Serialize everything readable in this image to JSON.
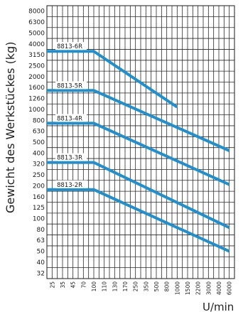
{
  "chart_data": {
    "type": "line",
    "title": "",
    "ylabel": "Gewicht des Werkstückes (kg)",
    "xlabel": "U/min",
    "y_scale": "log",
    "y_ticks": [
      "32",
      "40",
      "50",
      "63",
      "80",
      "100",
      "125",
      "160",
      "200",
      "250",
      "320",
      "400",
      "500",
      "630",
      "800",
      "1000",
      "1260",
      "1600",
      "2000",
      "2500",
      "3150",
      "4000",
      "5000",
      "6300",
      "8000"
    ],
    "x_ticks": [
      "25",
      "35",
      "45",
      "70",
      "100",
      "110",
      "130",
      "170",
      "250",
      "350",
      "500",
      "800",
      "1000",
      "1500",
      "2200",
      "3000",
      "4000",
      "6000"
    ],
    "grid": true,
    "series": [
      {
        "name": "8813-6R",
        "x": [
          "25",
          "100",
          "1000"
        ],
        "y": [
          3400,
          3400,
          1050
        ]
      },
      {
        "name": "8813-5R",
        "x": [
          "25",
          "100",
          "6000"
        ],
        "y": [
          1500,
          1500,
          420
        ]
      },
      {
        "name": "8813-4R",
        "x": [
          "25",
          "100",
          "6000"
        ],
        "y": [
          750,
          750,
          205
        ]
      },
      {
        "name": "8813-3R",
        "x": [
          "25",
          "100",
          "6000"
        ],
        "y": [
          330,
          330,
          83
        ]
      },
      {
        "name": "8813-2R",
        "x": [
          "25",
          "100",
          "6000"
        ],
        "y": [
          185,
          185,
          50
        ]
      }
    ],
    "line_color": "#1f8fd0"
  }
}
